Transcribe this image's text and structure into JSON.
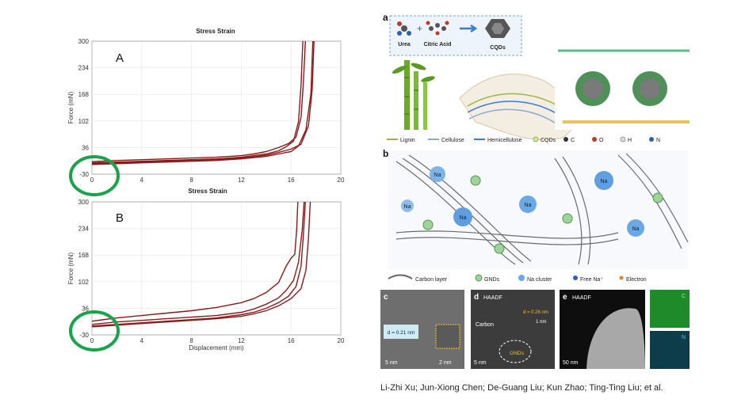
{
  "chart_data": [
    {
      "type": "line",
      "title": "Stress Strain",
      "panel_label": "A",
      "xlabel": "",
      "ylabel": "Force (mN)",
      "xlim": [
        0,
        20
      ],
      "ylim": [
        -30,
        300
      ],
      "xticks": [
        0,
        4,
        8,
        12,
        16,
        20
      ],
      "yticks": [
        -30,
        36,
        102,
        168,
        234,
        300
      ],
      "grid": true,
      "series": [
        {
          "x": [
            0,
            2,
            4,
            6,
            8,
            10,
            12,
            13,
            14,
            15,
            15.8,
            16.4,
            16.8,
            17.0,
            17.15
          ],
          "y": [
            1,
            4,
            6,
            8,
            10,
            12,
            16,
            20,
            26,
            36,
            46,
            62,
            110,
            200,
            300
          ]
        },
        {
          "x": [
            0,
            2,
            4,
            6,
            8,
            10,
            12,
            13,
            14,
            15,
            15.6,
            16.2,
            16.6,
            16.8,
            16.95
          ],
          "y": [
            -2,
            0,
            2,
            4,
            6,
            8,
            12,
            16,
            20,
            28,
            38,
            52,
            100,
            190,
            300
          ]
        },
        {
          "x": [
            0,
            2,
            4,
            6,
            8,
            10,
            12,
            13,
            14,
            15,
            16,
            16.8,
            17.4,
            17.7,
            17.85
          ],
          "y": [
            -4,
            -2,
            0,
            2,
            4,
            6,
            10,
            13,
            17,
            24,
            32,
            44,
            90,
            180,
            300
          ]
        },
        {
          "x": [
            0,
            2,
            4,
            6,
            8,
            10,
            12,
            13,
            14,
            15,
            16,
            16.6,
            17.2,
            17.6,
            17.75
          ],
          "y": [
            -6,
            -4,
            -2,
            0,
            2,
            4,
            8,
            11,
            14,
            20,
            26,
            40,
            80,
            170,
            300
          ]
        }
      ],
      "highlight": "green circle around origin"
    },
    {
      "type": "line",
      "title": "Stress Strain",
      "panel_label": "B",
      "xlabel": "Displacement (mm)",
      "ylabel": "Force (mN)",
      "xlim": [
        0,
        20
      ],
      "ylim": [
        -30,
        300
      ],
      "xticks": [
        0,
        4,
        8,
        12,
        16,
        20
      ],
      "yticks": [
        -30,
        36,
        102,
        168,
        234,
        300
      ],
      "grid": true,
      "series": [
        {
          "x": [
            0,
            2,
            4,
            6,
            8,
            10,
            12,
            13,
            14,
            15,
            15.6,
            16.0,
            16.3,
            16.45,
            16.55
          ],
          "y": [
            4,
            12,
            18,
            24,
            30,
            38,
            50,
            60,
            75,
            100,
            140,
            160,
            170,
            230,
            300
          ]
        },
        {
          "x": [
            0,
            2,
            4,
            6,
            8,
            10,
            12,
            13,
            14,
            15,
            15.6,
            16.2,
            16.6,
            16.9,
            17.05
          ],
          "y": [
            -4,
            2,
            6,
            10,
            14,
            18,
            26,
            34,
            46,
            62,
            80,
            105,
            150,
            230,
            300
          ]
        },
        {
          "x": [
            0,
            2,
            4,
            6,
            8,
            10,
            12,
            13,
            14,
            15,
            15.8,
            16.4,
            16.8,
            17.0,
            17.15
          ],
          "y": [
            -8,
            -4,
            0,
            4,
            8,
            12,
            20,
            26,
            36,
            50,
            66,
            90,
            140,
            220,
            300
          ]
        },
        {
          "x": [
            0,
            2,
            4,
            6,
            8,
            10,
            12,
            13,
            14,
            15,
            16,
            16.8,
            17.2,
            17.4,
            17.55
          ],
          "y": [
            -10,
            -6,
            -2,
            2,
            6,
            10,
            16,
            22,
            30,
            42,
            60,
            85,
            130,
            210,
            300
          ]
        }
      ],
      "highlight": "green circle around origin"
    }
  ],
  "colors": {
    "curve": "#8b1a1a",
    "highlight_circle": "#1aa34a",
    "grid": "#e6e6e6",
    "blue_accent": "#3a7bd5"
  },
  "figure": {
    "panel_a_label": "a",
    "panel_b_label": "b",
    "panel_c_label": "c",
    "panel_d_label": "d",
    "panel_e_label": "e",
    "scheme": {
      "urea": "Urea",
      "citric_acid": "Citric Acid",
      "cqds": "CQDs"
    },
    "legend_a": [
      "Lignin",
      "Cellulose",
      "Hemicellulose",
      "CQDs",
      "C",
      "O",
      "H",
      "N"
    ],
    "legend_b": [
      "Carbon layer",
      "GNDs",
      "Na cluster",
      "Free Na⁺",
      "Electron"
    ],
    "na_label": "Na",
    "c_inset_d": "d = 0.21 nm",
    "c_scale_1": "5 nm",
    "c_scale_2": "2 nm",
    "d_haadf": "HAADF",
    "d_carbon": "Carbon",
    "d_spacing": "d = 0.26 nm",
    "d_1nm": "1 nm",
    "d_gnds": "GNDs",
    "d_scale": "5 nm",
    "e_haadf": "HAADF",
    "e_scale": "50 nm",
    "e_map_c": "C",
    "e_map_n": "N"
  },
  "citation": "Li-Zhi Xu; Jun-Xiong Chen; De-Guang Liu; Kun Zhao; Ting-Ting Liu; et al."
}
